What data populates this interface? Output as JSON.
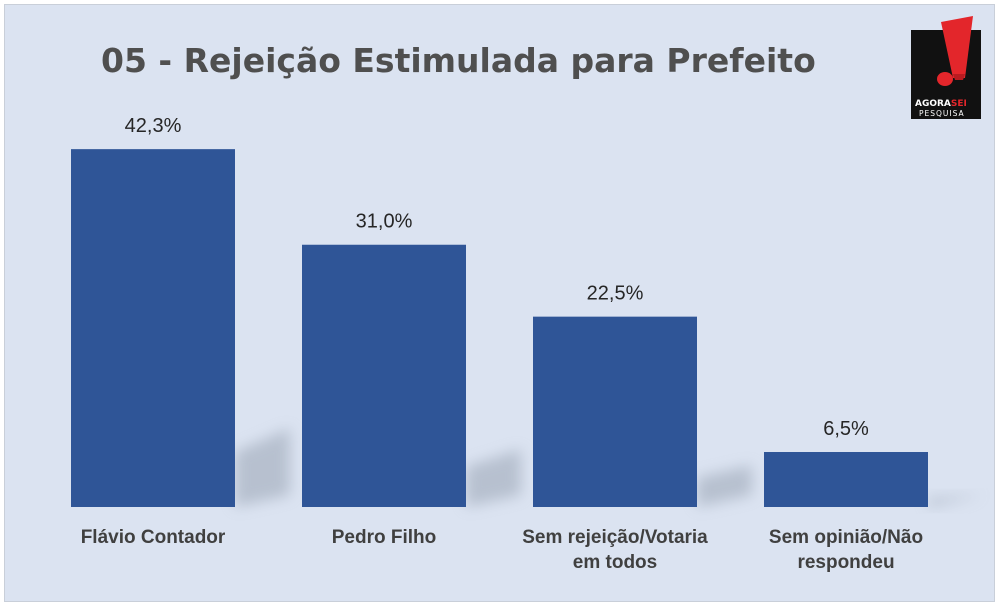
{
  "chart_data": {
    "type": "bar",
    "title": "05 - Rejeição Estimulada para Prefeito",
    "categories": [
      [
        "Flávio Contador"
      ],
      [
        "Pedro Filho"
      ],
      [
        "Sem rejeição/Votaria",
        "em todos"
      ],
      [
        "Sem opinião/Não",
        "respondeu"
      ]
    ],
    "values": [
      42.3,
      31.0,
      22.5,
      6.5
    ],
    "data_labels": [
      "42,3%",
      "31,0%",
      "22,5%",
      "6,5%"
    ],
    "ylim": [
      0,
      45
    ],
    "grid": false,
    "legend": "none",
    "bar_color": "#2f5597"
  },
  "logo": {
    "text_main_1": "AGORA",
    "text_main_2": "SEI",
    "text_sub": "PESQUISA",
    "bg_color": "#111111",
    "accent_color": "#e3262b"
  },
  "colors": {
    "background": "#dbe3f1",
    "title": "#4f4f4f",
    "labels": "#404040"
  }
}
